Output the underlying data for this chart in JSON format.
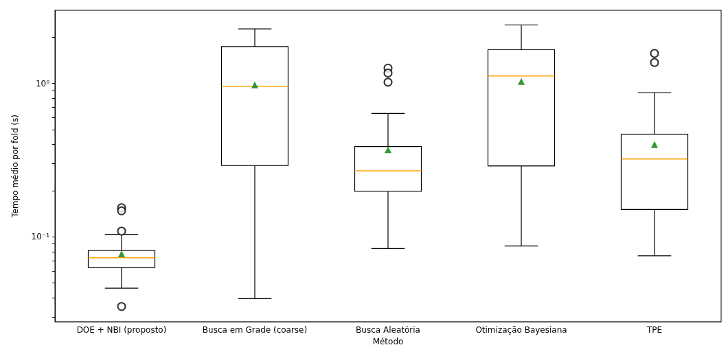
{
  "chart_data": {
    "type": "box",
    "xlabel": "Método",
    "ylabel": "Tempo médio por fold (s)",
    "categories": [
      "DOE + NBI (proposto)",
      "Busca em Grade (coarse)",
      "Busca Aleatória",
      "Otimização Bayesiana",
      "TPE"
    ],
    "series": [
      {
        "color": "#000000",
        "boxes": [
          {
            "low": 0.0463,
            "q1": 0.0632,
            "median": 0.0732,
            "q3": 0.0815,
            "high": 0.104,
            "mean": 0.0776,
            "outliers": [
              0.155,
              0.148,
              0.109,
              0.0352
            ]
          },
          {
            "low": 0.0396,
            "q1": 0.292,
            "median": 0.96,
            "q3": 1.74,
            "high": 2.27,
            "mean": 0.98
          },
          {
            "low": 0.0839,
            "q1": 0.198,
            "median": 0.27,
            "q3": 0.388,
            "high": 0.638,
            "mean": 0.37,
            "outliers": [
              1.26,
              1.17,
              1.02
            ]
          },
          {
            "low": 0.0872,
            "q1": 0.29,
            "median": 1.12,
            "q3": 1.66,
            "high": 2.41,
            "mean": 1.03
          },
          {
            "low": 0.0754,
            "q1": 0.151,
            "median": 0.322,
            "q3": 0.467,
            "high": 0.872,
            "mean": 0.4,
            "outliers": [
              1.57,
              1.37
            ]
          }
        ]
      }
    ],
    "log": "y",
    "ylim": [
      0.028,
      3.0
    ],
    "yticks": [
      {
        "value": 0.03,
        "label": null
      },
      {
        "value": 0.04,
        "label": null
      },
      {
        "value": 0.05,
        "label": null
      },
      {
        "value": 0.06,
        "label": null
      },
      {
        "value": 0.07,
        "label": null
      },
      {
        "value": 0.08,
        "label": null
      },
      {
        "value": 0.09,
        "label": null
      },
      {
        "value": 0.1,
        "label": "10⁻¹"
      },
      {
        "value": 0.2,
        "label": null
      },
      {
        "value": 0.3,
        "label": null
      },
      {
        "value": 0.4,
        "label": null
      },
      {
        "value": 0.5,
        "label": null
      },
      {
        "value": 0.6,
        "label": null
      },
      {
        "value": 0.7,
        "label": null
      },
      {
        "value": 0.8,
        "label": null
      },
      {
        "value": 0.9,
        "label": null
      },
      {
        "value": 1,
        "label": "10⁰"
      },
      {
        "value": 2,
        "label": null
      }
    ],
    "marker": "triangle",
    "grid": false
  }
}
